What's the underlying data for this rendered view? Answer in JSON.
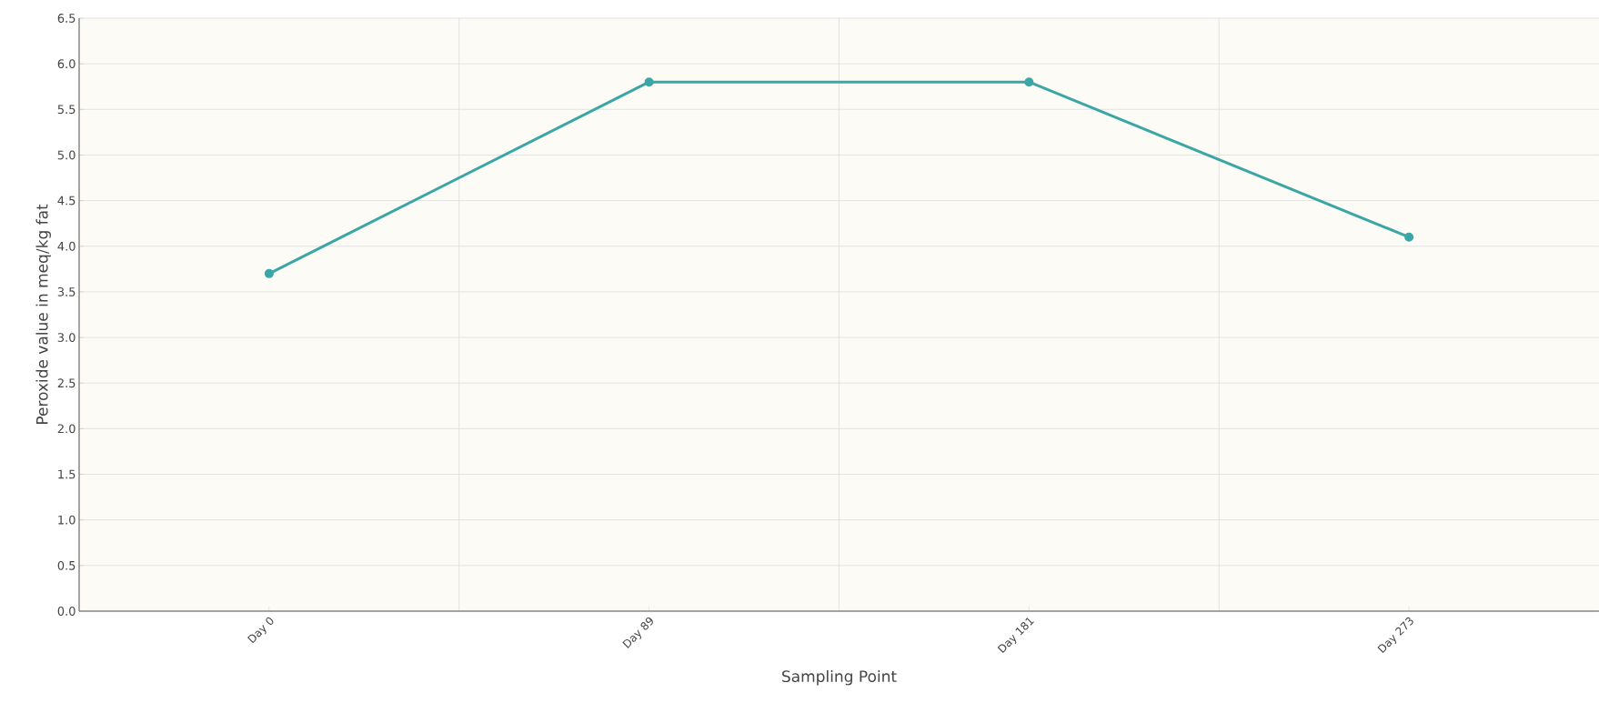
{
  "chart_data": {
    "type": "line",
    "xlabel": "Sampling Point",
    "ylabel": "Peroxide value in meq/kg fat",
    "categories": [
      "Day 0",
      "Day 89",
      "Day 181",
      "Day 273"
    ],
    "series": [
      {
        "color": "#3aa6a6",
        "values": [
          3.7,
          5.8,
          5.8,
          4.1
        ]
      }
    ],
    "ylim": [
      0,
      6.5
    ],
    "yticks": [
      {
        "value": 0,
        "label": "0.0"
      },
      0.5,
      {
        "value": 1,
        "label": "1.0"
      },
      1.5,
      {
        "value": 2,
        "label": "2.0"
      },
      2.5,
      {
        "value": 3,
        "label": "3.0"
      },
      3.5,
      {
        "value": 4,
        "label": "4.0"
      },
      4.5,
      {
        "value": 5,
        "label": "5.0"
      },
      5.5,
      {
        "value": 6,
        "label": "6.0"
      },
      6.5
    ],
    "grid": true,
    "marker": "circle",
    "line_style": "solid"
  }
}
